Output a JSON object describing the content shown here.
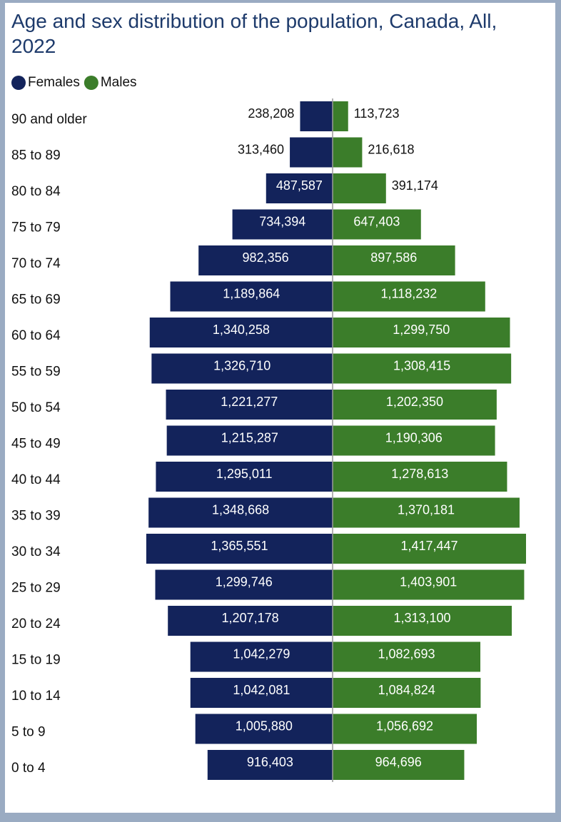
{
  "chart_data": {
    "type": "pyramid",
    "title": "Age and sex distribution of the population, Canada, All, 2022",
    "categories": [
      "90 and older",
      "85 to 89",
      "80 to 84",
      "75 to 79",
      "70 to 74",
      "65 to 69",
      "60 to 64",
      "55 to 59",
      "50 to 54",
      "45 to 49",
      "40 to 44",
      "35 to 39",
      "30 to 34",
      "25 to 29",
      "20 to 24",
      "15 to 19",
      "10 to 14",
      "5 to 9",
      "0 to 4"
    ],
    "series": [
      {
        "name": "Females",
        "color": "#13235b",
        "values": [
          238208,
          313460,
          487587,
          734394,
          982356,
          1189864,
          1340258,
          1326710,
          1221277,
          1215287,
          1295011,
          1348668,
          1365551,
          1299746,
          1207178,
          1042279,
          1042081,
          1005880,
          916403
        ],
        "value_labels": [
          "238,208",
          "313,460",
          "487,587",
          "734,394",
          "982,356",
          "1,189,864",
          "1,340,258",
          "1,326,710",
          "1,221,277",
          "1,215,287",
          "1,295,011",
          "1,348,668",
          "1,365,551",
          "1,299,746",
          "1,207,178",
          "1,042,279",
          "1,042,081",
          "1,005,880",
          "916,403"
        ]
      },
      {
        "name": "Males",
        "color": "#3b7d2a",
        "values": [
          113723,
          216618,
          391174,
          647403,
          897586,
          1118232,
          1299750,
          1308415,
          1202350,
          1190306,
          1278613,
          1370181,
          1417447,
          1403901,
          1313100,
          1082693,
          1084824,
          1056692,
          964696
        ],
        "value_labels": [
          "113,723",
          "216,618",
          "391,174",
          "647,403",
          "897,586",
          "1,118,232",
          "1,299,750",
          "1,308,415",
          "1,202,350",
          "1,190,306",
          "1,278,613",
          "1,370,181",
          "1,417,447",
          "1,403,901",
          "1,313,100",
          "1,082,693",
          "1,084,824",
          "1,056,692",
          "964,696"
        ]
      }
    ]
  }
}
